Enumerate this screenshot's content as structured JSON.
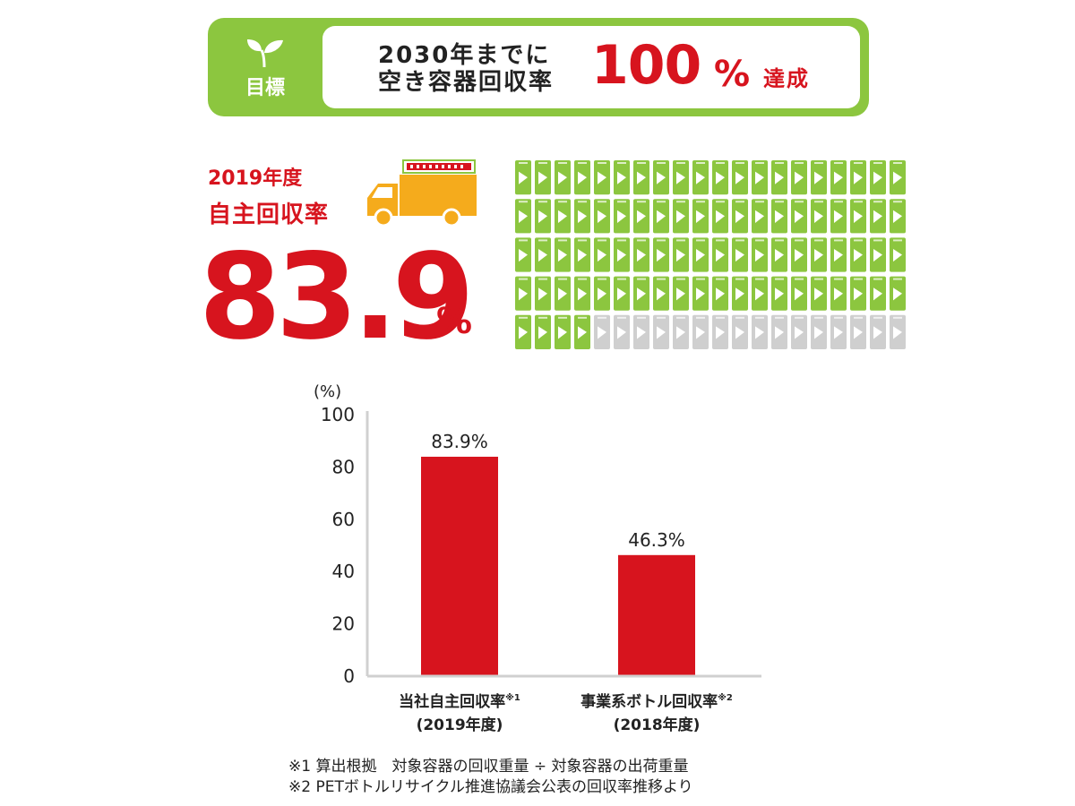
{
  "goal": {
    "tag": "目標",
    "line1": "2030年までに",
    "line2": "空き容器回収率",
    "big_value": "100",
    "big_unit": "%",
    "suffix": "達成"
  },
  "rate": {
    "year": "2019年度",
    "label": "自主回収率",
    "value": "83.9",
    "unit": "%"
  },
  "infographic": {
    "total_bottles": 100,
    "collected_bottles": 84,
    "collected_color": "#8cc63f",
    "remaining_color": "#cfcfcf"
  },
  "chart_data": {
    "type": "bar",
    "ylabel": "(%)",
    "ylim": [
      0,
      100
    ],
    "yticks": [
      0,
      20,
      40,
      60,
      80,
      100
    ],
    "grid": false,
    "bar_color": "#d7141e",
    "categories": [
      {
        "label": "当社自主回収率",
        "note": "※1",
        "period": "(2019年度)"
      },
      {
        "label": "事業系ボトル回収率",
        "note": "※2",
        "period": "(2018年度)"
      }
    ],
    "values": [
      83.9,
      46.3
    ],
    "data_labels": [
      "83.9%",
      "46.3%"
    ]
  },
  "footnotes": [
    "※1 算出根拠　対象容器の回収重量 ÷ 対象容器の出荷重量",
    "※2 PETボトルリサイクル推進協議会公表の回収率推移より"
  ]
}
